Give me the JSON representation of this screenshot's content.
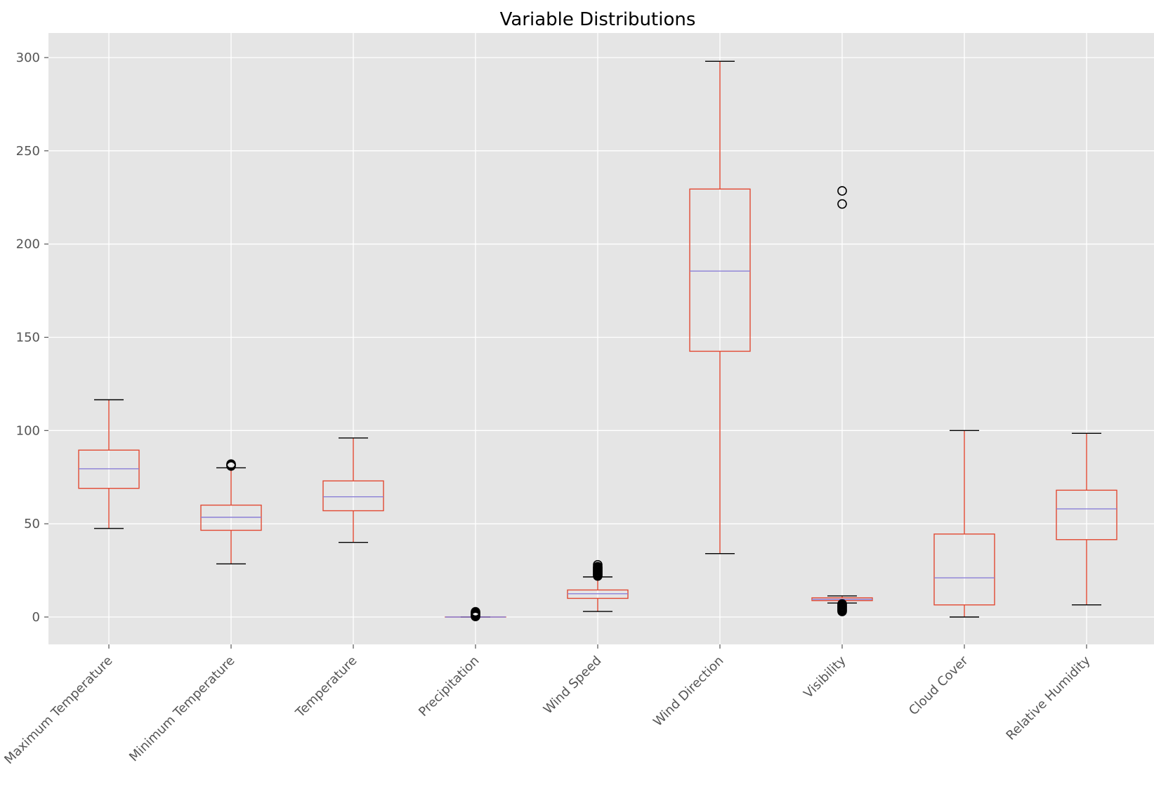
{
  "chart_data": {
    "type": "box",
    "title": "Variable Distributions",
    "xlabel": "",
    "ylabel": "",
    "ylim": [
      -14,
      313
    ],
    "yticks": [
      0,
      50,
      100,
      150,
      200,
      250,
      300
    ],
    "grid": true,
    "legend": "none",
    "colors": {
      "background": "#e5e5e5",
      "grid": "#ffffff",
      "box": "#e24a33",
      "median": "#8a7fd6",
      "whisker_cap": "#000000",
      "tick_text": "#555555"
    },
    "categories": [
      "Maximum Temperature",
      "Minimum Temperature",
      "Temperature",
      "Precipitation",
      "Wind Speed",
      "Wind Direction",
      "Visibility",
      "Cloud Cover",
      "Relative Humidity"
    ],
    "boxes": [
      {
        "whislo": 47.5,
        "q1": 69,
        "med": 79.5,
        "q3": 89.5,
        "whishi": 116.5,
        "fliers": []
      },
      {
        "whislo": 28.5,
        "q1": 46.5,
        "med": 53.5,
        "q3": 60,
        "whishi": 80,
        "fliers": [
          81,
          81.5,
          82
        ]
      },
      {
        "whislo": 40,
        "q1": 57,
        "med": 64.5,
        "q3": 73,
        "whishi": 96,
        "fliers": []
      },
      {
        "whislo": 0,
        "q1": 0,
        "med": 0,
        "q3": 0,
        "whishi": 0,
        "fliers": [
          0.3,
          0.8,
          1.3,
          1.8,
          2.3,
          2.8
        ]
      },
      {
        "whislo": 3,
        "q1": 10,
        "med": 12.5,
        "q3": 14.5,
        "whishi": 21.5,
        "fliers": [
          22,
          22.5,
          23,
          23.5,
          24,
          24.5,
          25,
          25.5,
          26,
          26.5,
          27,
          28
        ]
      },
      {
        "whislo": 34,
        "q1": 142.5,
        "med": 185.5,
        "q3": 229.5,
        "whishi": 298,
        "fliers": []
      },
      {
        "whislo": 7.5,
        "q1": 8.8,
        "med": 9.5,
        "q3": 10.3,
        "whishi": 11.3,
        "fliers": [
          3,
          3.5,
          4,
          4.5,
          5,
          5.5,
          6,
          6.5,
          7,
          221.5,
          228.5
        ]
      },
      {
        "whislo": 0,
        "q1": 6.5,
        "med": 21,
        "q3": 44.5,
        "whishi": 100,
        "fliers": []
      },
      {
        "whislo": 6.5,
        "q1": 41.5,
        "med": 58,
        "q3": 68,
        "whishi": 98.5,
        "fliers": []
      }
    ]
  }
}
